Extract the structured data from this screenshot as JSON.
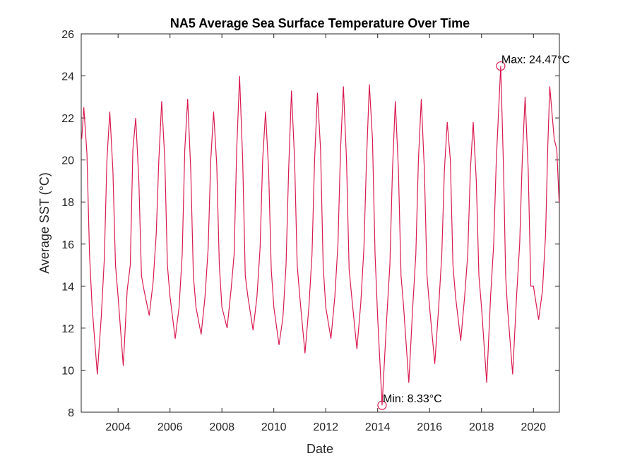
{
  "chart_data": {
    "type": "line",
    "title": "NA5 Average Sea Surface Temperature Over Time",
    "xlabel": "Date",
    "ylabel": "Average SST (°C)",
    "color": "#d81b50",
    "xlim": [
      2002.58,
      2021.0
    ],
    "xticks": [
      2004,
      2006,
      2008,
      2010,
      2012,
      2014,
      2016,
      2018,
      2020
    ],
    "ylim": [
      8,
      26
    ],
    "yticks": [
      8,
      10,
      12,
      14,
      16,
      18,
      20,
      22,
      24,
      26
    ],
    "grid": false,
    "x": [
      2002.6,
      2002.68,
      2002.8,
      2002.9,
      2003.0,
      2003.2,
      2003.35,
      2003.47,
      2003.57,
      2003.68,
      2003.8,
      2003.9,
      2004.0,
      2004.2,
      2004.35,
      2004.47,
      2004.57,
      2004.68,
      2004.8,
      2004.9,
      2005.0,
      2005.2,
      2005.35,
      2005.47,
      2005.57,
      2005.68,
      2005.8,
      2005.9,
      2006.0,
      2006.2,
      2006.35,
      2006.47,
      2006.57,
      2006.68,
      2006.8,
      2006.9,
      2007.0,
      2007.2,
      2007.35,
      2007.47,
      2007.57,
      2007.68,
      2007.8,
      2007.9,
      2008.0,
      2008.2,
      2008.35,
      2008.47,
      2008.57,
      2008.68,
      2008.8,
      2008.9,
      2009.0,
      2009.2,
      2009.35,
      2009.47,
      2009.57,
      2009.68,
      2009.8,
      2009.9,
      2010.0,
      2010.2,
      2010.35,
      2010.47,
      2010.57,
      2010.68,
      2010.8,
      2010.9,
      2011.0,
      2011.2,
      2011.35,
      2011.47,
      2011.57,
      2011.68,
      2011.8,
      2011.9,
      2012.0,
      2012.2,
      2012.35,
      2012.47,
      2012.57,
      2012.68,
      2012.8,
      2012.9,
      2013.0,
      2013.2,
      2013.35,
      2013.47,
      2013.57,
      2013.68,
      2013.8,
      2013.9,
      2014.0,
      2014.17,
      2014.35,
      2014.47,
      2014.57,
      2014.68,
      2014.8,
      2014.9,
      2015.0,
      2015.2,
      2015.35,
      2015.47,
      2015.57,
      2015.68,
      2015.8,
      2015.9,
      2016.0,
      2016.2,
      2016.35,
      2016.47,
      2016.57,
      2016.68,
      2016.8,
      2016.9,
      2017.0,
      2017.2,
      2017.35,
      2017.47,
      2017.57,
      2017.68,
      2017.8,
      2017.9,
      2018.0,
      2018.2,
      2018.35,
      2018.47,
      2018.57,
      2018.74,
      2018.85,
      2018.93,
      2019.0,
      2019.2,
      2019.35,
      2019.47,
      2019.57,
      2019.68,
      2019.8,
      2019.9,
      2020.0,
      2020.2,
      2020.35,
      2020.47,
      2020.55,
      2020.63,
      2020.8,
      2020.9,
      2020.99
    ],
    "values": [
      21.0,
      22.5,
      20.3,
      15.5,
      13.0,
      9.8,
      12.5,
      15.3,
      20.0,
      22.3,
      19.5,
      15.0,
      13.5,
      10.2,
      13.8,
      15.0,
      20.5,
      22.0,
      19.0,
      14.5,
      13.8,
      12.6,
      14.2,
      16.5,
      20.0,
      22.8,
      20.0,
      15.0,
      13.5,
      11.5,
      13.0,
      15.5,
      20.5,
      22.9,
      19.5,
      14.5,
      13.0,
      11.7,
      13.5,
      15.8,
      20.0,
      22.3,
      19.8,
      15.0,
      13.0,
      12.0,
      13.8,
      15.5,
      20.5,
      24.0,
      20.0,
      14.5,
      13.5,
      11.9,
      13.5,
      15.8,
      20.0,
      22.3,
      19.5,
      14.8,
      13.0,
      11.2,
      12.5,
      15.0,
      19.5,
      23.3,
      20.0,
      15.0,
      13.5,
      10.8,
      13.0,
      15.5,
      20.0,
      23.2,
      20.5,
      15.0,
      13.0,
      11.5,
      13.5,
      16.0,
      20.5,
      23.5,
      20.0,
      14.8,
      13.5,
      11.0,
      13.2,
      15.8,
      20.0,
      23.6,
      21.0,
      15.5,
      12.5,
      8.33,
      12.5,
      15.0,
      19.5,
      22.8,
      19.5,
      14.5,
      13.0,
      9.4,
      13.0,
      15.5,
      20.0,
      22.9,
      19.5,
      14.5,
      13.0,
      10.3,
      13.0,
      15.5,
      19.5,
      21.8,
      20.0,
      15.0,
      13.5,
      11.4,
      13.5,
      15.5,
      19.5,
      21.8,
      19.0,
      14.5,
      13.0,
      9.4,
      13.5,
      16.0,
      20.0,
      24.47,
      19.5,
      14.5,
      13.0,
      9.8,
      13.5,
      16.0,
      20.0,
      23.0,
      19.5,
      14.0,
      14.0,
      12.4,
      13.8,
      16.5,
      20.5,
      23.5,
      21.0,
      20.5,
      18.0
    ],
    "annotations": [
      {
        "text": "Max: 24.47°C",
        "x": 2018.74,
        "y": 24.47
      },
      {
        "text": "Min: 8.33°C",
        "x": 2014.17,
        "y": 8.33
      }
    ]
  }
}
